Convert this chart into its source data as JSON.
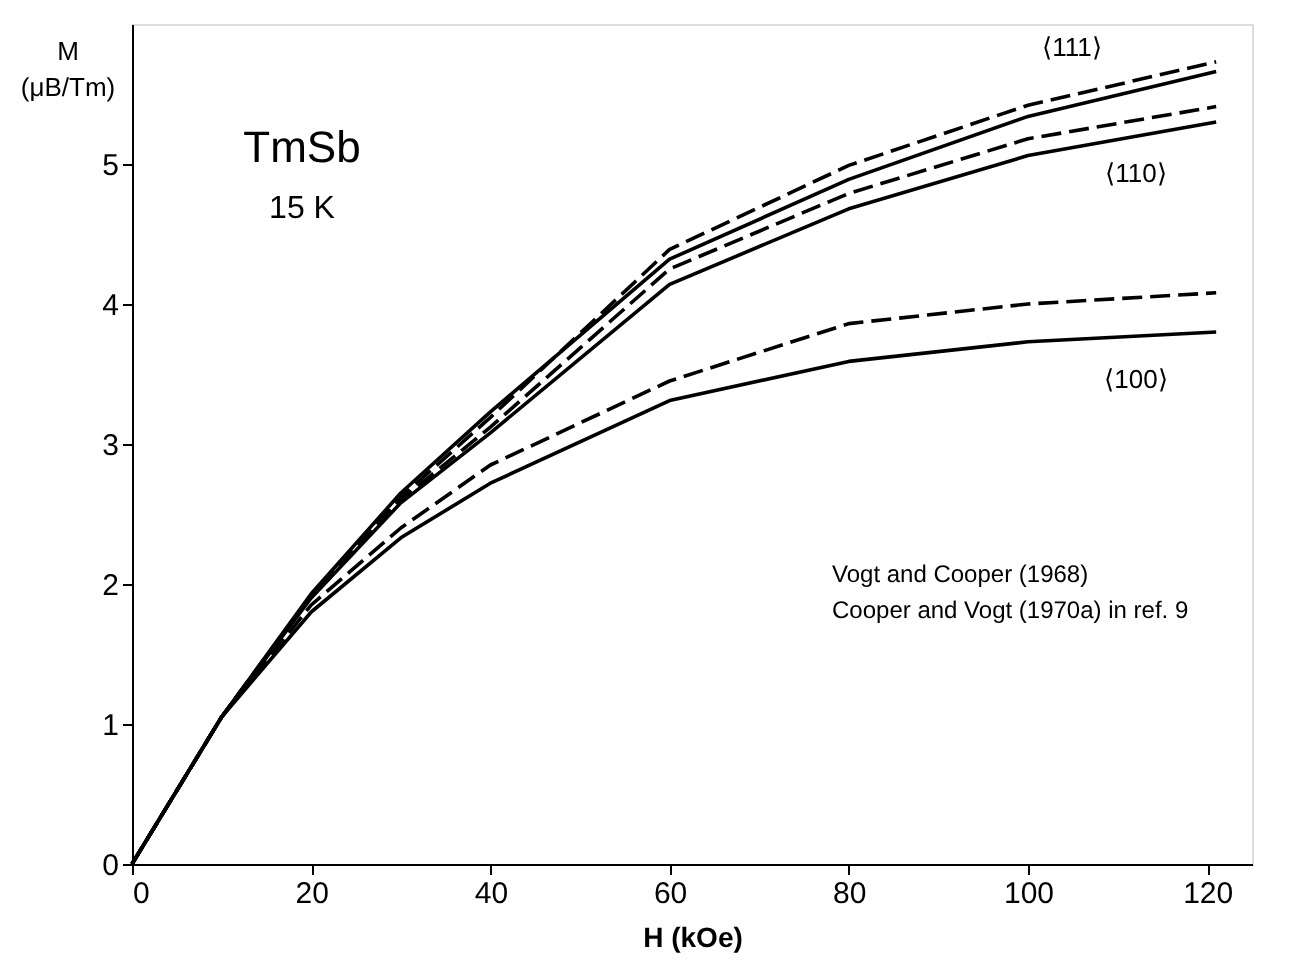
{
  "chart_data": {
    "type": "line",
    "xlabel": "H (kOe)",
    "ylabel": "M (μB/Tm)",
    "x": [
      0,
      10,
      20,
      30,
      40,
      60,
      80,
      100,
      121
    ],
    "xlim": [
      0,
      125
    ],
    "ylim": [
      0,
      6
    ],
    "xticks": [
      0,
      20,
      40,
      60,
      80,
      100,
      120
    ],
    "yticks": [
      0,
      1,
      2,
      3,
      4,
      5
    ],
    "grid": false,
    "marker": "none",
    "series": [
      {
        "color": "#000000",
        "line_style": "solid",
        "values": [
          0,
          1.05,
          1.93,
          2.65,
          3.23,
          4.32,
          4.89,
          5.34,
          5.66
        ]
      },
      {
        "color": "#000000",
        "line_style": "dashed",
        "values": [
          0,
          1.05,
          1.92,
          2.62,
          3.19,
          4.39,
          4.99,
          5.42,
          5.73
        ]
      },
      {
        "color": "#000000",
        "line_style": "dashed",
        "values": [
          0,
          1.05,
          1.91,
          2.6,
          3.12,
          4.25,
          4.79,
          5.18,
          5.41
        ]
      },
      {
        "color": "#000000",
        "line_style": "solid",
        "values": [
          0,
          1.05,
          1.9,
          2.58,
          3.08,
          4.14,
          4.68,
          5.06,
          5.3
        ]
      },
      {
        "color": "#000000",
        "line_style": "dashed",
        "values": [
          0,
          1.05,
          1.85,
          2.4,
          2.85,
          3.45,
          3.86,
          4.0,
          4.08
        ]
      },
      {
        "color": "#000000",
        "line_style": "solid",
        "values": [
          0,
          1.05,
          1.8,
          2.33,
          2.72,
          3.31,
          3.59,
          3.73,
          3.8
        ]
      }
    ],
    "annotations": [
      "⟨111⟩",
      "⟨110⟩",
      "⟨100⟩",
      "TmSb",
      "15 K",
      "Vogt and Cooper (1968)",
      "Cooper and Vogt (1970a) in ref. 9"
    ]
  }
}
